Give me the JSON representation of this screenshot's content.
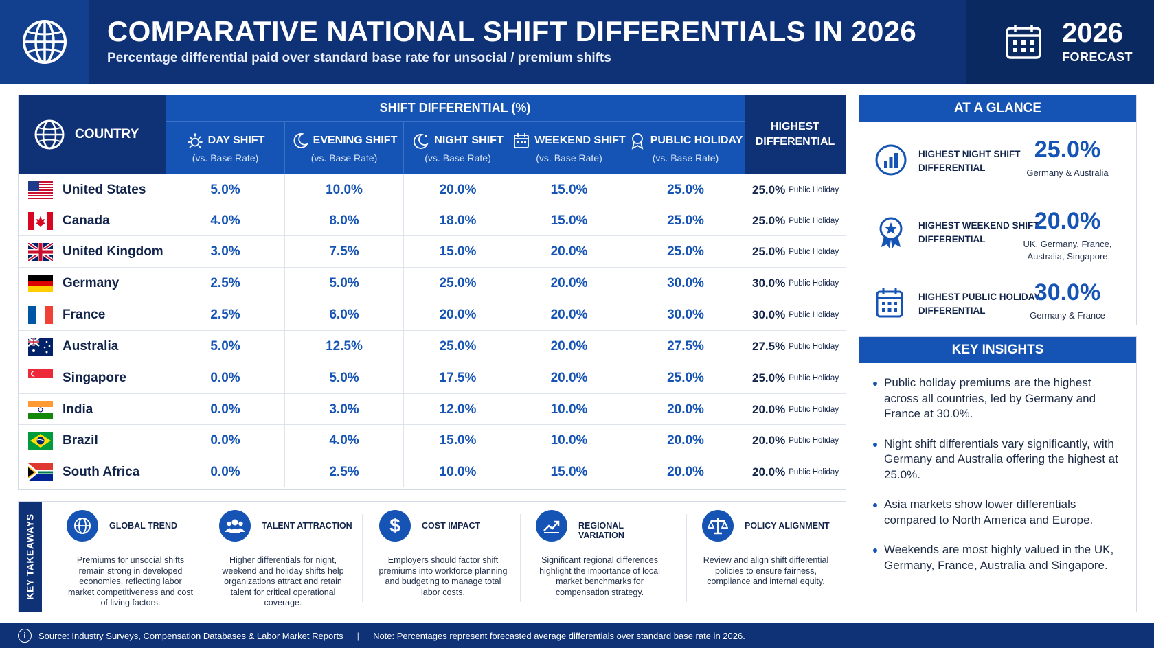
{
  "header": {
    "title": "COMPARATIVE NATIONAL SHIFT DIFFERENTIALS IN 2026",
    "subtitle": "Percentage differential paid over standard base rate for unsocial / premium shifts",
    "year": "2026",
    "forecast": "FORECAST"
  },
  "table": {
    "country_header": "COUNTRY",
    "group_header": "SHIFT DIFFERENTIAL (%)",
    "highest_header": "HIGHEST DIFFERENTIAL",
    "columns": [
      {
        "label": "DAY SHIFT",
        "sub": "(vs. Base Rate)",
        "icon": "sun-icon"
      },
      {
        "label": "EVENING SHIFT",
        "sub": "(vs. Base Rate)",
        "icon": "moon-icon"
      },
      {
        "label": "NIGHT SHIFT",
        "sub": "(vs. Base Rate)",
        "icon": "moon-star-icon"
      },
      {
        "label": "WEEKEND SHIFT",
        "sub": "(vs. Base Rate)",
        "icon": "calendar-icon"
      },
      {
        "label": "PUBLIC HOLIDAY",
        "sub": "(vs. Base Rate)",
        "icon": "award-icon"
      }
    ],
    "rows": [
      {
        "country": "United States",
        "flag": "us",
        "values": [
          "5.0%",
          "10.0%",
          "20.0%",
          "15.0%",
          "25.0%"
        ],
        "highest": "25.0%",
        "highest_type": "Public Holiday"
      },
      {
        "country": "Canada",
        "flag": "ca",
        "values": [
          "4.0%",
          "8.0%",
          "18.0%",
          "15.0%",
          "25.0%"
        ],
        "highest": "25.0%",
        "highest_type": "Public Holiday"
      },
      {
        "country": "United Kingdom",
        "flag": "gb",
        "values": [
          "3.0%",
          "7.5%",
          "15.0%",
          "20.0%",
          "25.0%"
        ],
        "highest": "25.0%",
        "highest_type": "Public Holiday"
      },
      {
        "country": "Germany",
        "flag": "de",
        "values": [
          "2.5%",
          "5.0%",
          "25.0%",
          "20.0%",
          "30.0%"
        ],
        "highest": "30.0%",
        "highest_type": "Public Holiday"
      },
      {
        "country": "France",
        "flag": "fr",
        "values": [
          "2.5%",
          "6.0%",
          "20.0%",
          "20.0%",
          "30.0%"
        ],
        "highest": "30.0%",
        "highest_type": "Public Holiday"
      },
      {
        "country": "Australia",
        "flag": "au",
        "values": [
          "5.0%",
          "12.5%",
          "25.0%",
          "20.0%",
          "27.5%"
        ],
        "highest": "27.5%",
        "highest_type": "Public Holiday"
      },
      {
        "country": "Singapore",
        "flag": "sg",
        "values": [
          "0.0%",
          "5.0%",
          "17.5%",
          "20.0%",
          "25.0%"
        ],
        "highest": "25.0%",
        "highest_type": "Public Holiday"
      },
      {
        "country": "India",
        "flag": "in",
        "values": [
          "0.0%",
          "3.0%",
          "12.0%",
          "10.0%",
          "20.0%"
        ],
        "highest": "20.0%",
        "highest_type": "Public Holiday"
      },
      {
        "country": "Brazil",
        "flag": "br",
        "values": [
          "0.0%",
          "4.0%",
          "15.0%",
          "10.0%",
          "20.0%"
        ],
        "highest": "20.0%",
        "highest_type": "Public Holiday"
      },
      {
        "country": "South Africa",
        "flag": "za",
        "values": [
          "0.0%",
          "2.5%",
          "10.0%",
          "15.0%",
          "20.0%"
        ],
        "highest": "20.0%",
        "highest_type": "Public Holiday"
      }
    ]
  },
  "chart_data": {
    "type": "table",
    "title": "COMPARATIVE NATIONAL SHIFT DIFFERENTIALS IN 2026",
    "columns": [
      "COUNTRY",
      "DAY SHIFT",
      "EVENING SHIFT",
      "NIGHT SHIFT",
      "WEEKEND SHIFT",
      "PUBLIC HOLIDAY",
      "HIGHEST DIFFERENTIAL"
    ],
    "categories": [
      "United States",
      "Canada",
      "United Kingdom",
      "Germany",
      "France",
      "Australia",
      "Singapore",
      "India",
      "Brazil",
      "South Africa"
    ],
    "series": [
      {
        "name": "DAY SHIFT",
        "values": [
          5.0,
          4.0,
          3.0,
          2.5,
          2.5,
          5.0,
          0.0,
          0.0,
          0.0,
          0.0
        ]
      },
      {
        "name": "EVENING SHIFT",
        "values": [
          10.0,
          8.0,
          7.5,
          5.0,
          6.0,
          12.5,
          5.0,
          3.0,
          4.0,
          2.5
        ]
      },
      {
        "name": "NIGHT SHIFT",
        "values": [
          20.0,
          18.0,
          15.0,
          25.0,
          20.0,
          25.0,
          17.5,
          12.0,
          15.0,
          10.0
        ]
      },
      {
        "name": "WEEKEND SHIFT",
        "values": [
          15.0,
          15.0,
          20.0,
          20.0,
          20.0,
          20.0,
          20.0,
          10.0,
          10.0,
          15.0
        ]
      },
      {
        "name": "PUBLIC HOLIDAY",
        "values": [
          25.0,
          25.0,
          25.0,
          30.0,
          30.0,
          27.5,
          25.0,
          20.0,
          20.0,
          20.0
        ]
      },
      {
        "name": "HIGHEST DIFFERENTIAL",
        "values": [
          25.0,
          25.0,
          25.0,
          30.0,
          30.0,
          27.5,
          25.0,
          20.0,
          20.0,
          20.0
        ]
      }
    ]
  },
  "takeaways": {
    "label": "KEY TAKEAWAYS",
    "items": [
      {
        "title": "GLOBAL TREND",
        "icon": "globe-icon",
        "text": "Premiums for unsocial shifts remain strong in developed economies, reflecting labor market competitiveness and cost of living factors."
      },
      {
        "title": "TALENT ATTRACTION",
        "icon": "people-icon",
        "text": "Higher differentials for night, weekend and holiday shifts help organizations attract and retain talent for critical operational coverage."
      },
      {
        "title": "COST IMPACT",
        "icon": "dollar-icon",
        "text": "Employers should factor shift premiums into workforce planning and budgeting to manage total labor costs."
      },
      {
        "title": "REGIONAL VARIATION",
        "icon": "trend-icon",
        "text": "Significant regional differences highlight the importance of local market benchmarks for compensation strategy."
      },
      {
        "title": "POLICY ALIGNMENT",
        "icon": "scales-icon",
        "text": "Review and align shift differential policies to ensure fairness, compliance and internal equity."
      }
    ]
  },
  "glance": {
    "title": "AT A GLANCE",
    "items": [
      {
        "label": "HIGHEST NIGHT SHIFT DIFFERENTIAL",
        "value": "25.0%",
        "note": "Germany & Australia",
        "icon": "bar-chart-icon"
      },
      {
        "label": "HIGHEST WEEKEND SHIFT DIFFERENTIAL",
        "value": "20.0%",
        "note": "UK, Germany, France, Australia, Singapore",
        "icon": "badge-icon"
      },
      {
        "label": "HIGHEST PUBLIC HOLIDAY DIFFERENTIAL",
        "value": "30.0%",
        "note": "Germany & France",
        "icon": "calendar-icon"
      }
    ]
  },
  "insights": {
    "title": "KEY INSIGHTS",
    "items": [
      "Public holiday premiums are the highest across all countries, led by Germany and France at 30.0%.",
      "Night shift differentials vary significantly, with Germany and Australia offering the highest at 25.0%.",
      "Asia markets show lower differentials compared to North America and Europe.",
      "Weekends are most highly valued in the UK, Germany, France, Australia and Singapore."
    ]
  },
  "footer": {
    "source": "Source: Industry Surveys, Compensation Databases & Labor Market Reports",
    "note": "Note: Percentages represent forecasted average differentials over standard base rate in 2026."
  },
  "colors": {
    "navy": "#0f3277",
    "blue": "#1554b5",
    "text": "#13244a"
  }
}
